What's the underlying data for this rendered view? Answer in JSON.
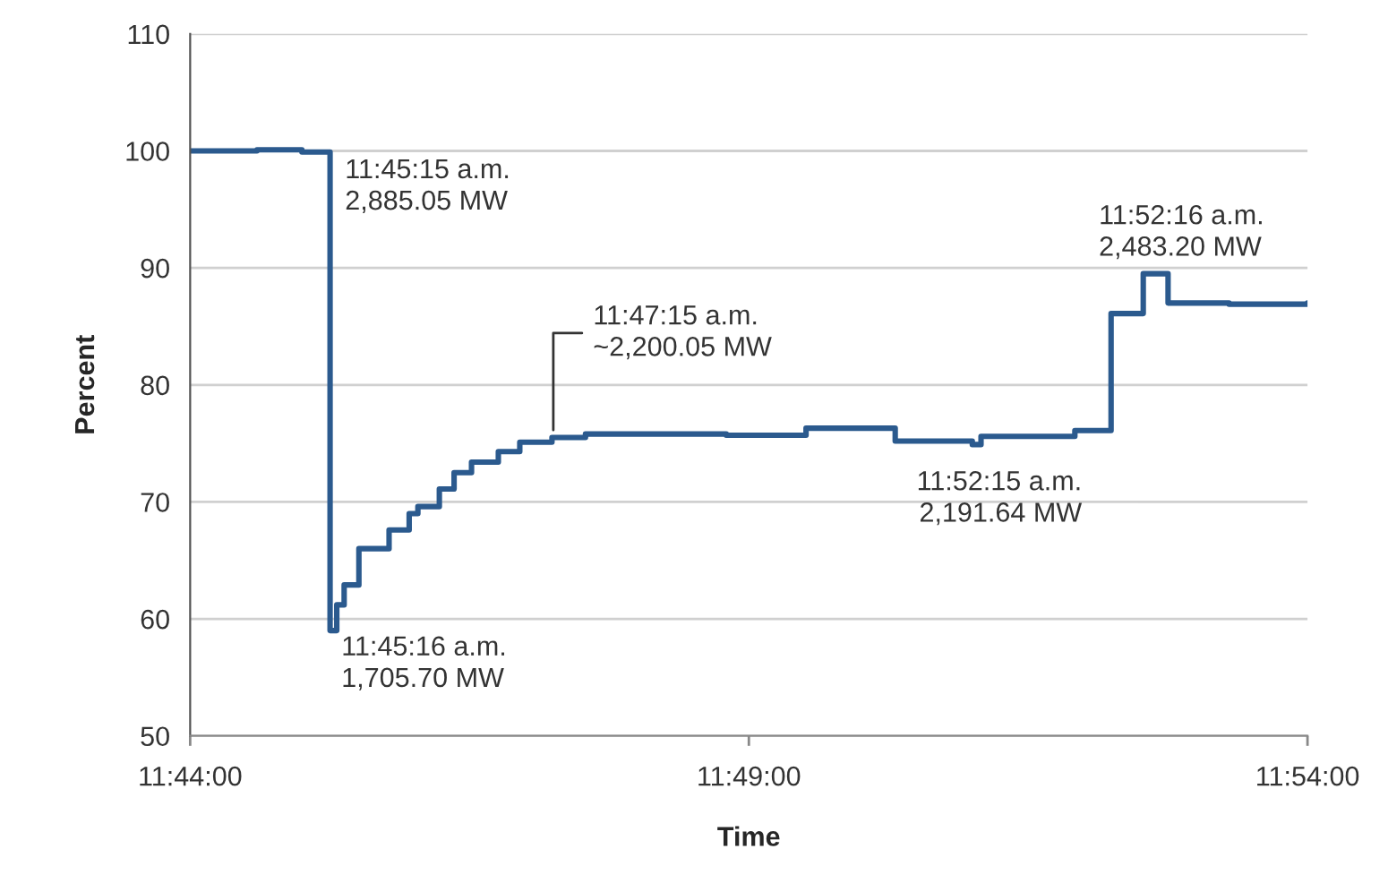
{
  "chart_data": {
    "type": "step",
    "xlabel": "Time",
    "ylabel": "Percent",
    "x": [
      11.73333,
      11.7433,
      11.75,
      11.7542,
      11.7552,
      11.7563,
      11.7585,
      11.763,
      11.766,
      11.7673,
      11.7705,
      11.7727,
      11.7753,
      11.7793,
      11.7825,
      11.7873,
      11.7923,
      11.8133,
      11.8252,
      11.8385,
      11.85,
      11.8513,
      11.8653,
      11.8707,
      11.8755,
      11.8792,
      11.8883,
      11.9
    ],
    "series": [
      {
        "color": "#2b5a8e",
        "values": [
          100,
          100.1,
          99.9,
          59.0,
          61.2,
          62.9,
          66.0,
          67.6,
          69.0,
          69.6,
          71.1,
          72.5,
          73.4,
          74.3,
          75.1,
          75.5,
          75.8,
          75.7,
          76.3,
          75.2,
          74.9,
          75.6,
          76.1,
          86.1,
          89.5,
          87.0,
          86.9,
          87.0
        ]
      }
    ],
    "xlim": [
      11.73333,
      11.9
    ],
    "ylim": [
      50,
      110
    ],
    "xticks": [
      {
        "value": 11.73333,
        "label": "11:44:00"
      },
      {
        "value": 11.81667,
        "label": "11:49:00"
      },
      {
        "value": 11.9,
        "label": "11:54:00"
      }
    ],
    "yticks": [
      50,
      60,
      70,
      80,
      90,
      100,
      110
    ],
    "grid": "y",
    "legend": false,
    "marker": "none",
    "line_style": "solid",
    "annotations": [
      {
        "text": "11:45:15 a.m.\n2,885.05 MW",
        "x": 11.7542,
        "y": 100
      },
      {
        "text": "11:45:16 a.m.\n1,705.70 MW",
        "x": 11.7544,
        "y": 59.0
      },
      {
        "text": "11:47:15 a.m.\n~2,200.05 MW",
        "x": 11.7875,
        "y": 75.5
      },
      {
        "text": "11:52:15 a.m.\n2,191.64 MW",
        "x": 11.8708,
        "y": 76.1
      },
      {
        "text": "11:52:16 a.m.\n2,483.20 MW",
        "x": 11.8711,
        "y": 86.1
      }
    ]
  }
}
